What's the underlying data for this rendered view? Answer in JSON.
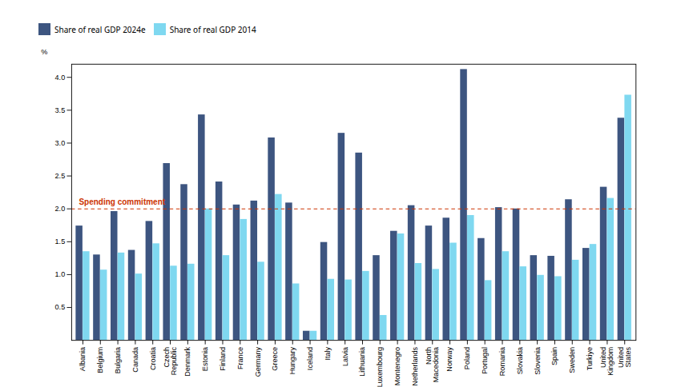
{
  "chart_data": {
    "type": "bar",
    "categories": [
      "Albania",
      "Belgium",
      "Bulgaria",
      "Canada",
      "Croatia",
      "Czech\nRepublic",
      "Denmark",
      "Estonia",
      "Finland",
      "France",
      "Germany",
      "Greece",
      "Hungary",
      "Iceland",
      "Italy",
      "Latvia",
      "Lithuania",
      "Luxembourg",
      "Montenegro",
      "Netherlands",
      "North\nMacedonia",
      "Norway",
      "Poland",
      "Portugal",
      "Romania",
      "Slovakia",
      "Slovenia",
      "Spain",
      "Sweden",
      "Turkiye",
      "United\nKingdom",
      "United\nStates"
    ],
    "series": [
      {
        "name": "Share of real GDP 2024e",
        "color": "#3d5580",
        "values": [
          1.74,
          1.3,
          1.96,
          1.37,
          1.81,
          2.69,
          2.37,
          3.43,
          2.41,
          2.06,
          2.12,
          3.08,
          2.09,
          0.14,
          1.49,
          3.15,
          2.85,
          1.29,
          1.66,
          2.05,
          1.74,
          1.86,
          4.12,
          1.55,
          2.02,
          2.0,
          1.29,
          1.28,
          2.14,
          1.4,
          2.33,
          3.38
        ]
      },
      {
        "name": "Share of real GDP 2014",
        "color": "#7fd8f0",
        "values": [
          1.35,
          1.07,
          1.33,
          1.01,
          1.47,
          1.13,
          1.16,
          2.0,
          1.29,
          1.84,
          1.19,
          2.22,
          0.86,
          0.14,
          0.93,
          0.92,
          1.05,
          0.38,
          1.62,
          1.17,
          1.08,
          1.48,
          1.9,
          0.91,
          1.35,
          1.12,
          0.99,
          0.97,
          1.22,
          1.46,
          2.16,
          3.73
        ]
      }
    ],
    "ylabel": "%",
    "ylim": [
      0,
      4.2
    ],
    "yticks": [
      0.5,
      {
        "value": 1.0,
        "label": "1.0"
      },
      1.5,
      {
        "value": 2.0,
        "label": "2.0"
      },
      2.5,
      {
        "value": 3.0,
        "label": "3.0"
      },
      3.5,
      {
        "value": 4.0,
        "label": "4.0"
      }
    ],
    "annotations": [
      {
        "type": "hline",
        "y": 2.0,
        "label": "Spending commitment",
        "color": "#cc3300",
        "line_style": "dashed"
      }
    ],
    "grid": false,
    "legend": "upper left"
  }
}
